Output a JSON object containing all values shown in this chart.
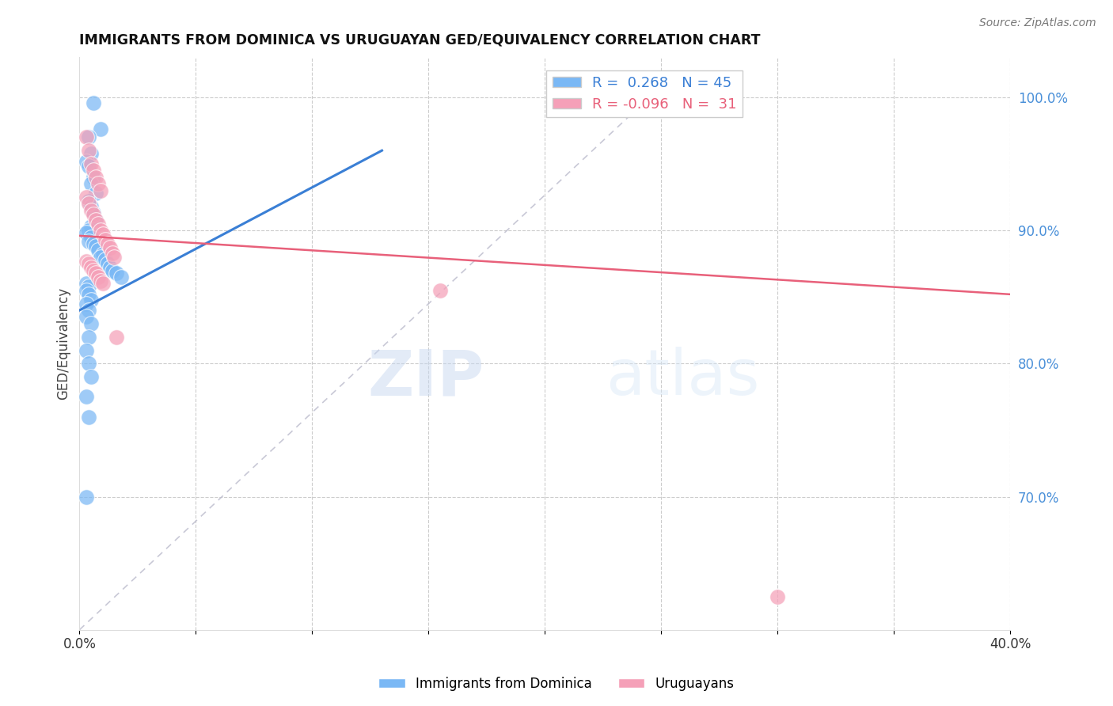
{
  "title": "IMMIGRANTS FROM DOMINICA VS URUGUAYAN GED/EQUIVALENCY CORRELATION CHART",
  "source": "Source: ZipAtlas.com",
  "ylabel": "GED/Equivalency",
  "xlim": [
    0.0,
    0.4
  ],
  "ylim": [
    0.6,
    1.03
  ],
  "xticks": [
    0.0,
    0.05,
    0.1,
    0.15,
    0.2,
    0.25,
    0.3,
    0.35,
    0.4
  ],
  "xtick_labels": [
    "0.0%",
    "",
    "",
    "",
    "",
    "",
    "",
    "",
    "40.0%"
  ],
  "yticks_right": [
    0.7,
    0.8,
    0.9,
    1.0
  ],
  "ytick_labels_right": [
    "70.0%",
    "80.0%",
    "90.0%",
    "100.0%"
  ],
  "blue_color": "#7ab8f5",
  "pink_color": "#f5a0b8",
  "blue_r": 0.268,
  "blue_n": 45,
  "pink_r": -0.096,
  "pink_n": 31,
  "legend_label_blue": "Immigrants from Dominica",
  "legend_label_pink": "Uruguayans",
  "watermark_zip": "ZIP",
  "watermark_atlas": "atlas",
  "blue_scatter_x": [
    0.006,
    0.009,
    0.004,
    0.005,
    0.003,
    0.004,
    0.006,
    0.005,
    0.007,
    0.004,
    0.005,
    0.006,
    0.007,
    0.005,
    0.004,
    0.003,
    0.005,
    0.004,
    0.006,
    0.007,
    0.008,
    0.01,
    0.009,
    0.011,
    0.012,
    0.013,
    0.014,
    0.016,
    0.018,
    0.003,
    0.004,
    0.003,
    0.004,
    0.005,
    0.003,
    0.004,
    0.003,
    0.005,
    0.004,
    0.003,
    0.004,
    0.005,
    0.003,
    0.004,
    0.003
  ],
  "blue_scatter_y": [
    0.996,
    0.976,
    0.97,
    0.958,
    0.952,
    0.948,
    0.94,
    0.935,
    0.928,
    0.922,
    0.918,
    0.913,
    0.908,
    0.903,
    0.9,
    0.898,
    0.895,
    0.892,
    0.89,
    0.888,
    0.885,
    0.882,
    0.88,
    0.878,
    0.875,
    0.872,
    0.87,
    0.868,
    0.865,
    0.86,
    0.858,
    0.855,
    0.852,
    0.848,
    0.845,
    0.84,
    0.835,
    0.83,
    0.82,
    0.81,
    0.8,
    0.79,
    0.775,
    0.76,
    0.7
  ],
  "pink_scatter_x": [
    0.003,
    0.004,
    0.005,
    0.006,
    0.007,
    0.008,
    0.009,
    0.003,
    0.004,
    0.005,
    0.006,
    0.007,
    0.008,
    0.009,
    0.01,
    0.011,
    0.012,
    0.013,
    0.014,
    0.015,
    0.003,
    0.004,
    0.005,
    0.006,
    0.007,
    0.008,
    0.009,
    0.01,
    0.155,
    0.016,
    0.3
  ],
  "pink_scatter_y": [
    0.97,
    0.96,
    0.95,
    0.945,
    0.94,
    0.935,
    0.93,
    0.925,
    0.92,
    0.915,
    0.912,
    0.908,
    0.905,
    0.9,
    0.897,
    0.893,
    0.89,
    0.887,
    0.883,
    0.88,
    0.877,
    0.875,
    0.872,
    0.87,
    0.868,
    0.865,
    0.862,
    0.86,
    0.855,
    0.82,
    0.625
  ],
  "blue_line_x": [
    0.0,
    0.13
  ],
  "blue_line_y": [
    0.84,
    0.96
  ],
  "pink_line_x": [
    0.0,
    0.4
  ],
  "pink_line_y": [
    0.896,
    0.852
  ],
  "diag_line_x": [
    0.0,
    0.245
  ],
  "diag_line_y": [
    0.6,
    1.0
  ]
}
